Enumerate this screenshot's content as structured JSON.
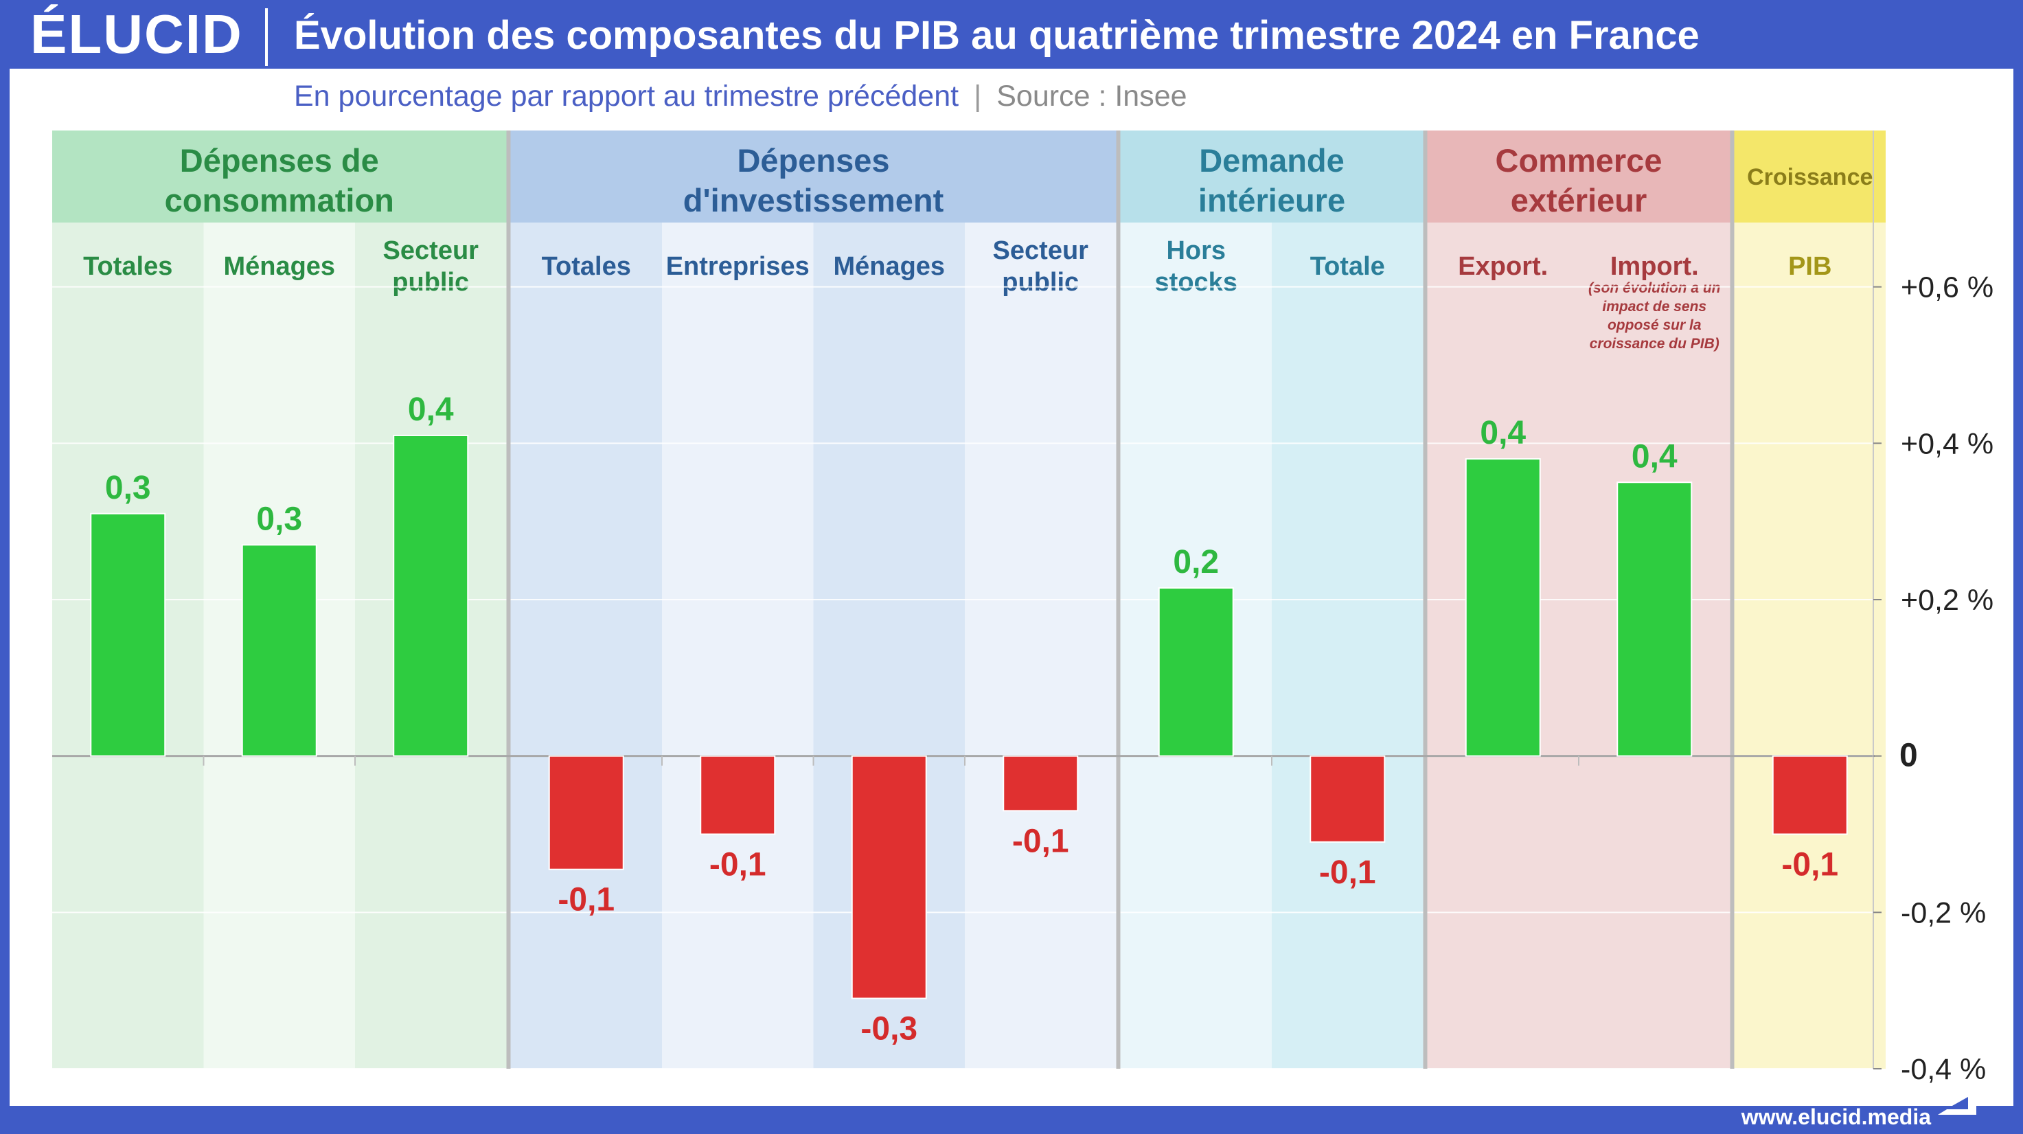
{
  "header": {
    "logo": "ÉLUCID",
    "title": "Évolution des composantes du PIB au quatrième trimestre 2024 en France",
    "subtitle": "En pourcentage par rapport au trimestre précédent",
    "separator": "|",
    "source": "Source : Insee"
  },
  "footer": {
    "url": "www.elucid.media"
  },
  "colors": {
    "positive": "#2ecc40",
    "negative": "#e03030",
    "positive_label": "#2eb840",
    "negative_label": "#d42b2b",
    "frame": "#3f5bc6"
  },
  "chart_data": {
    "type": "bar",
    "ylim": [
      -0.4,
      0.8
    ],
    "yticks": [
      {
        "value": 0.6,
        "label": "+0,6 %"
      },
      {
        "value": 0.4,
        "label": "+0,4 %"
      },
      {
        "value": 0.2,
        "label": "+0,2 %"
      },
      {
        "value": 0,
        "label": "0"
      },
      {
        "value": -0.2,
        "label": "-0,2 %"
      },
      {
        "value": -0.4,
        "label": "-0,4 %"
      }
    ],
    "groups": [
      {
        "title": [
          "Dépenses de",
          "consommation"
        ],
        "header_bg": "#b3e4c2",
        "header_color": "#2a8c45",
        "bg_dark": "#e1f2e3",
        "bg_light": "#f0f9f1",
        "label_color": "#2a8c45",
        "categories": [
          {
            "label": [
              "Totales"
            ],
            "value": 0.31,
            "value_label": "0,3"
          },
          {
            "label": [
              "Ménages"
            ],
            "value": 0.27,
            "value_label": "0,3"
          },
          {
            "label": [
              "Secteur",
              "public"
            ],
            "value": 0.41,
            "value_label": "0,4"
          }
        ]
      },
      {
        "title": [
          "Dépenses",
          "d'investissement"
        ],
        "header_bg": "#b2cbea",
        "header_color": "#2c5d96",
        "bg_dark": "#d9e6f5",
        "bg_light": "#ecf2fa",
        "label_color": "#2c5d96",
        "categories": [
          {
            "label": [
              "Totales"
            ],
            "value": -0.145,
            "value_label": "-0,1"
          },
          {
            "label": [
              "Entreprises"
            ],
            "value": -0.1,
            "value_label": "-0,1"
          },
          {
            "label": [
              "Ménages"
            ],
            "value": -0.31,
            "value_label": "-0,3"
          },
          {
            "label": [
              "Secteur",
              "public"
            ],
            "value": -0.07,
            "value_label": "-0,1"
          }
        ]
      },
      {
        "title": [
          "Demande",
          "intérieure"
        ],
        "header_bg": "#b7e0ea",
        "header_color": "#2a7e99",
        "bg_dark": "#eaf6fa",
        "bg_light": "#d6eff5",
        "label_color": "#2a7e99",
        "categories": [
          {
            "label": [
              "Hors",
              "stocks"
            ],
            "value": 0.215,
            "value_label": "0,2"
          },
          {
            "label": [
              "Totale"
            ],
            "value": -0.11,
            "value_label": "-0,1"
          }
        ]
      },
      {
        "title": [
          "Commerce",
          "extérieur"
        ],
        "header_bg": "#e8b7b8",
        "header_color": "#a63a3e",
        "bg_dark": "#f2dcdc",
        "bg_light": "#f2dcdc",
        "label_color": "#a63a3e",
        "categories": [
          {
            "label": [
              "Export."
            ],
            "value": 0.38,
            "value_label": "0,4"
          },
          {
            "label": [
              "Import."
            ],
            "value": 0.35,
            "value_label": "0,4",
            "note": [
              "(son évolution a un",
              "impact de sens",
              "opposé sur la",
              "croissance du PIB)"
            ]
          }
        ]
      },
      {
        "title": [
          "Croissance"
        ],
        "small_title": true,
        "header_bg": "#f4e76a",
        "header_color": "#8a7d1a",
        "bg_dark": "#fbf6cc",
        "bg_light": "#fbf6cc",
        "label_color": "#a39618",
        "categories": [
          {
            "label": [
              "PIB"
            ],
            "value": -0.1,
            "value_label": "-0,1"
          }
        ]
      }
    ]
  }
}
